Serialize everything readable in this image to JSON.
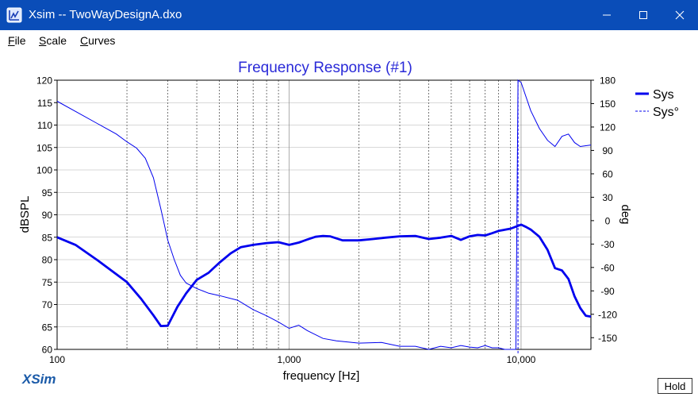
{
  "window": {
    "title": "Xsim -- TwoWayDesignA.dxo",
    "icon": "xsim-app-icon",
    "controls": [
      "minimize-icon",
      "maximize-icon",
      "close-icon"
    ],
    "accent": "#0a4db8"
  },
  "menu": {
    "items": [
      {
        "label": "File",
        "underline": "F",
        "rest": "ile"
      },
      {
        "label": "Scale",
        "underline": "S",
        "rest": "cale"
      },
      {
        "label": "Curves",
        "underline": "C",
        "rest": "urves"
      }
    ]
  },
  "logo": "XSim",
  "hold_label": "Hold",
  "chart_data": {
    "type": "line",
    "title": "Frequency Response (#1)",
    "xlabel": "frequency [Hz]",
    "ylabel": "dBSPL",
    "y2label": "deg",
    "xscale": "log",
    "xlim": [
      100,
      20000
    ],
    "ylim": [
      60,
      120
    ],
    "y2lim": [
      -165,
      180
    ],
    "x_tick_labels": [
      "100",
      "1,000",
      "10,000"
    ],
    "y_ticks": [
      60,
      65,
      70,
      75,
      80,
      85,
      90,
      95,
      100,
      105,
      110,
      115,
      120
    ],
    "y2_ticks": [
      180,
      150,
      120,
      90,
      60,
      30,
      0,
      -30,
      -60,
      -90,
      -120,
      -150
    ],
    "grid": true,
    "legend_position": "top-right",
    "color": "#0000ee",
    "series": [
      {
        "name": "Sys",
        "axis": "left",
        "style": "solid-thick",
        "x": [
          100,
          120,
          150,
          200,
          230,
          260,
          280,
          300,
          330,
          360,
          400,
          450,
          500,
          560,
          620,
          700,
          800,
          900,
          1000,
          1100,
          1200,
          1300,
          1400,
          1500,
          1700,
          2000,
          2300,
          2600,
          3000,
          3500,
          4000,
          4500,
          5000,
          5500,
          6000,
          6500,
          7000,
          7500,
          8000,
          9000,
          10000,
          10500,
          11000,
          12000,
          13000,
          14000,
          15000,
          16000,
          17000,
          18000,
          19000,
          20000
        ],
        "y": [
          85,
          83.3,
          79.8,
          75,
          71.3,
          67.6,
          65.2,
          65.3,
          69.5,
          72.5,
          75.5,
          77.1,
          79.3,
          81.4,
          82.8,
          83.3,
          83.7,
          83.9,
          83.3,
          83.8,
          84.5,
          85.1,
          85.3,
          85.2,
          84.3,
          84.3,
          84.6,
          84.9,
          85.2,
          85.3,
          84.6,
          84.9,
          85.3,
          84.4,
          85.2,
          85.5,
          85.4,
          85.9,
          86.4,
          86.9,
          87.8,
          87.3,
          86.7,
          85.1,
          82.2,
          78.1,
          77.6,
          75.7,
          71.8,
          69.2,
          67.5,
          67.3
        ]
      },
      {
        "name": "Sys°",
        "axis": "right",
        "style": "thin",
        "x": [
          100,
          120,
          150,
          180,
          200,
          220,
          240,
          260,
          280,
          290,
          300,
          320,
          340,
          360,
          400,
          450,
          500,
          600,
          700,
          800,
          900,
          1000,
          1100,
          1200,
          1400,
          1600,
          2000,
          2500,
          3000,
          3500,
          4000,
          4500,
          5000,
          5500,
          6000,
          6500,
          7000,
          7500,
          8000,
          8500,
          9000,
          9300,
          9500,
          9700,
          10000,
          11000,
          12000,
          13000,
          14000,
          15000,
          16000,
          17000,
          18000,
          20000
        ],
        "y": [
          153,
          140,
          124,
          111,
          101,
          93,
          80,
          55,
          15,
          -5,
          -25,
          -50,
          -70,
          -80,
          -87,
          -93,
          -96,
          -102,
          -114,
          -122,
          -130,
          -138,
          -134,
          -141,
          -151,
          -154,
          -157,
          -156,
          -161,
          -161,
          -165,
          -161,
          -163,
          -160,
          -162,
          -163,
          -160,
          -163,
          -163,
          -165,
          -167,
          -170,
          -170,
          182,
          177,
          141,
          118,
          103,
          95,
          108,
          111,
          100,
          95,
          97
        ]
      }
    ]
  }
}
